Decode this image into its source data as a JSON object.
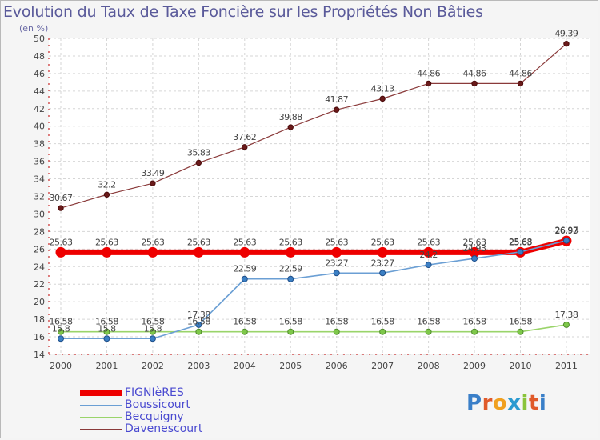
{
  "title": "Evolution du Taux de Taxe Foncière sur les Propriétés Non Bâties",
  "unit_label": "(en %)",
  "logo": [
    "P",
    "r",
    "o",
    "x",
    "i",
    "t",
    "i"
  ],
  "chart_data": {
    "type": "line",
    "x": [
      "2000",
      "2001",
      "2002",
      "2003",
      "2004",
      "2005",
      "2006",
      "2007",
      "2008",
      "2009",
      "2010",
      "2011"
    ],
    "ylim": [
      14,
      50
    ],
    "yticks": [
      14,
      16,
      18,
      20,
      22,
      24,
      26,
      28,
      30,
      32,
      34,
      36,
      38,
      40,
      42,
      44,
      46,
      48,
      50
    ],
    "grid": true,
    "legend_position": "bottom-left",
    "series": [
      {
        "name": "FIGNIèRES",
        "color": "#ee0000",
        "values": [
          25.63,
          25.63,
          25.63,
          25.63,
          25.63,
          25.63,
          25.63,
          25.63,
          25.63,
          25.63,
          25.63,
          26.93
        ],
        "labels": [
          "25.63",
          "25.63",
          "25.63",
          "25.63",
          "25.63",
          "25.63",
          "25.63",
          "25.63",
          "25.63",
          "25.63",
          "25.63",
          "26.93"
        ]
      },
      {
        "name": "Boussicourt",
        "color": "#6b9fd4",
        "values": [
          15.8,
          15.8,
          15.8,
          17.38,
          22.59,
          22.59,
          23.27,
          23.27,
          24.2,
          24.93,
          25.68,
          26.97
        ],
        "labels": [
          "15.8",
          "15.8",
          "15.8",
          "17.38",
          "22.59",
          "22.59",
          "23.27",
          "23.27",
          "24.2",
          "24.93",
          "25.68",
          "26.97"
        ]
      },
      {
        "name": "Becquigny",
        "color": "#9ad46a",
        "values": [
          16.58,
          16.58,
          16.58,
          16.58,
          16.58,
          16.58,
          16.58,
          16.58,
          16.58,
          16.58,
          16.58,
          17.38
        ],
        "labels": [
          "16.58",
          "16.58",
          "16.58",
          "16.58",
          "16.58",
          "16.58",
          "16.58",
          "16.58",
          "16.58",
          "16.58",
          "16.58",
          "17.38"
        ]
      },
      {
        "name": "Davenescourt",
        "color": "#7a2a2a",
        "values": [
          30.67,
          32.2,
          33.49,
          35.83,
          37.62,
          39.88,
          41.87,
          43.13,
          44.86,
          44.86,
          44.86,
          49.39
        ],
        "labels": [
          "30.67",
          "32.2",
          "33.49",
          "35.83",
          "37.62",
          "39.88",
          "41.87",
          "43.13",
          "44.86",
          "44.86",
          "44.86",
          "49.39"
        ]
      }
    ]
  }
}
